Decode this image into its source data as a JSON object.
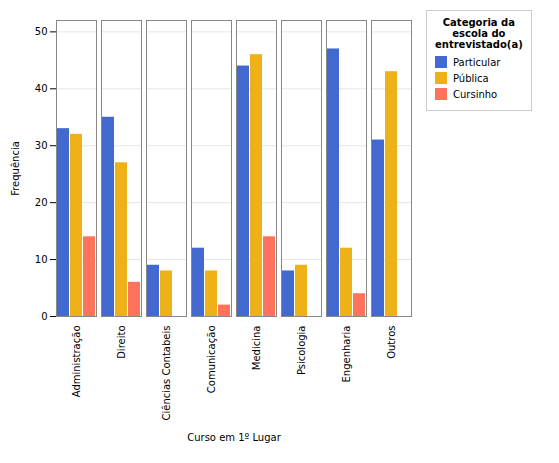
{
  "chart_data": {
    "type": "bar",
    "categories": [
      "Administração",
      "Direito",
      "Ciências Contabeis",
      "Comunicação",
      "Medicina",
      "Psicologia",
      "Engenharia",
      "Outros"
    ],
    "series": [
      {
        "name": "Particular",
        "values": [
          33,
          35,
          9,
          12,
          44,
          8,
          47,
          31
        ]
      },
      {
        "name": "Pública",
        "values": [
          32,
          27,
          8,
          8,
          46,
          9,
          12,
          43
        ]
      },
      {
        "name": "Cursinho",
        "values": [
          14,
          6,
          0,
          2,
          14,
          0,
          4,
          0
        ]
      }
    ],
    "xlabel": "Curso em 1º Lugar",
    "ylabel": "Frequência",
    "legend_title": "Categoria da\nescola do\nentrevistado(a)",
    "legend": "right",
    "ylim": [
      0,
      52
    ],
    "yticks": [
      0,
      10,
      20,
      30,
      40,
      50
    ],
    "grid": true
  }
}
